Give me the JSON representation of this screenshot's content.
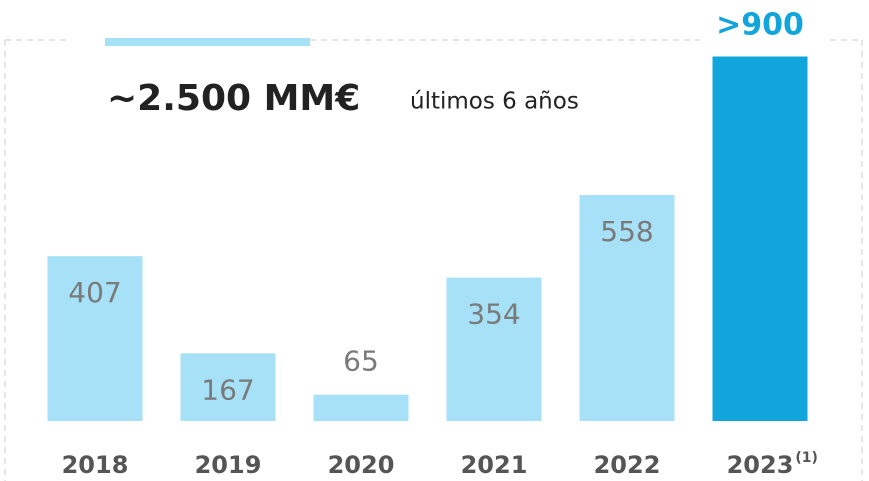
{
  "chart_data": {
    "type": "bar",
    "title": "~2.500 MM€",
    "subtitle": "últimos 6 años",
    "categories": [
      "2018",
      "2019",
      "2020",
      "2021",
      "2022",
      "2023"
    ],
    "footnote_marks": [
      null,
      null,
      null,
      null,
      null,
      "(1)"
    ],
    "values": [
      407,
      167,
      65,
      354,
      558,
      900
    ],
    "value_labels": [
      "407",
      "167",
      "65",
      "354",
      "558",
      ">900"
    ],
    "colors": [
      "#a6e1f7",
      "#a6e1f7",
      "#a6e1f7",
      "#a6e1f7",
      "#a6e1f7",
      "#12a5dc"
    ],
    "ylim": [
      0,
      1000
    ]
  }
}
